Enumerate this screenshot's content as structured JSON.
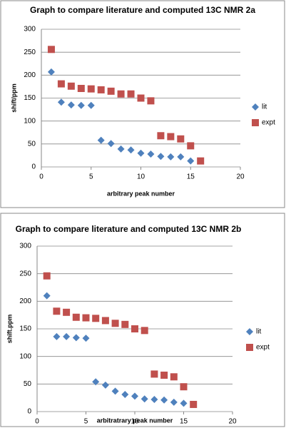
{
  "chart_data": [
    {
      "type": "scatter",
      "title": "Graph to compare literature and computed 13C NMR 2a",
      "x_label": "arbitrary peak number",
      "y_label": "shift/ppm",
      "xlim": [
        0,
        20
      ],
      "xticks": [
        0,
        5,
        10,
        15,
        20
      ],
      "ylim": [
        0,
        300
      ],
      "yticks": [
        0,
        50,
        100,
        150,
        200,
        250,
        300
      ],
      "grid": true,
      "legend": "right",
      "series": [
        {
          "name": "lit",
          "color": "#4f81bd",
          "marker": "diamond",
          "x": [
            1,
            2,
            3,
            4,
            5,
            6,
            7,
            8,
            9,
            10,
            11,
            12,
            13,
            14,
            15
          ],
          "values": [
            207,
            141,
            135,
            134,
            134,
            58,
            51,
            39,
            37,
            30,
            28,
            23,
            22,
            22,
            13
          ]
        },
        {
          "name": "expt",
          "color": "#c0504d",
          "marker": "square",
          "x": [
            1,
            2,
            3,
            4,
            5,
            6,
            7,
            8,
            9,
            10,
            11,
            12,
            13,
            14,
            15,
            16
          ],
          "values": [
            256,
            181,
            176,
            171,
            170,
            168,
            165,
            159,
            159,
            150,
            144,
            68,
            66,
            61,
            46,
            13
          ]
        }
      ]
    },
    {
      "type": "scatter",
      "title": "Graph to compare literature and computed 13C NMR 2b",
      "x_label": "arbitratrary peak number",
      "y_label": "shift.ppm",
      "xlim": [
        0,
        20
      ],
      "xticks": [
        0,
        5,
        10,
        15,
        20
      ],
      "ylim": [
        0,
        300
      ],
      "yticks": [
        0,
        50,
        100,
        150,
        200,
        250,
        300
      ],
      "grid": true,
      "legend": "right",
      "series": [
        {
          "name": "lit",
          "color": "#4f81bd",
          "marker": "diamond",
          "x": [
            1,
            2,
            3,
            4,
            5,
            6,
            7,
            8,
            9,
            10,
            11,
            12,
            13,
            14,
            15
          ],
          "values": [
            210,
            136,
            136,
            134,
            133,
            54,
            48,
            37,
            31,
            28,
            23,
            22,
            21,
            17,
            15
          ]
        },
        {
          "name": "expt",
          "color": "#c0504d",
          "marker": "square",
          "x": [
            1,
            2,
            3,
            4,
            5,
            6,
            7,
            8,
            9,
            10,
            11,
            12,
            13,
            14,
            15,
            16
          ],
          "values": [
            246,
            182,
            180,
            171,
            170,
            169,
            165,
            160,
            158,
            150,
            147,
            68,
            66,
            63,
            45,
            13
          ]
        }
      ]
    }
  ]
}
